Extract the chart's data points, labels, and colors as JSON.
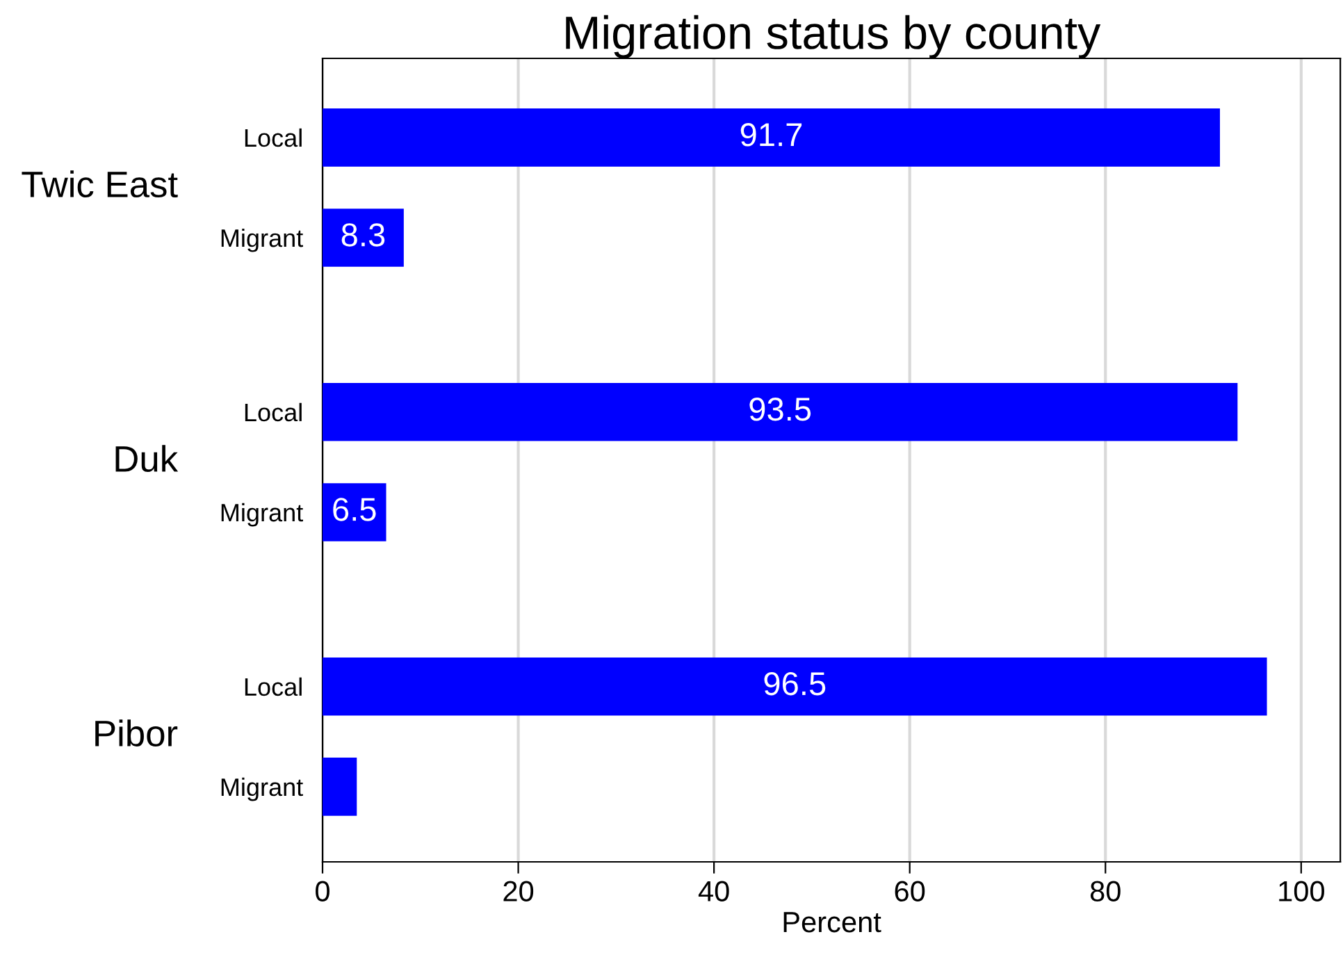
{
  "chart_data": {
    "type": "bar",
    "orientation": "horizontal",
    "title": "Migration status by county",
    "xlabel": "Percent",
    "categories": [
      "Local",
      "Migrant",
      "Local",
      "Migrant",
      "Local",
      "Migrant"
    ],
    "values": [
      91.7,
      8.3,
      93.5,
      6.5,
      96.5,
      3.5
    ],
    "value_labels": [
      "91.7",
      "8.3",
      "93.5",
      "6.5",
      "96.5",
      null
    ],
    "color": "#0000ff",
    "annotations": [
      "Twic East",
      "Duk",
      "Pibor"
    ],
    "xlim": [
      0,
      104
    ],
    "xticks": [
      0,
      20,
      40,
      60,
      80,
      100
    ],
    "grid": "x"
  }
}
